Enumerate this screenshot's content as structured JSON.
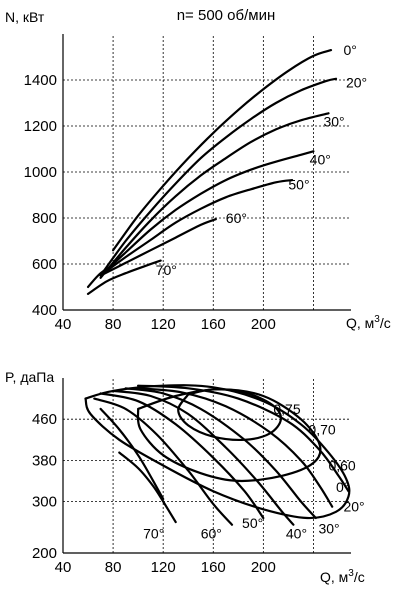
{
  "chart_data": [
    {
      "type": "line",
      "title": "n= 500 об/мин",
      "xlabel": "Q, м",
      "xlabel_sup": "3",
      "xlabel_tail": "/с",
      "ylabel": "N, кВт",
      "xlim": [
        40,
        270
      ],
      "ylim": [
        400,
        1600
      ],
      "xticks": [
        40,
        80,
        120,
        160,
        200
      ],
      "xtick_labels": [
        "40",
        "80",
        "120",
        "160",
        "200"
      ],
      "yticks": [
        400,
        600,
        800,
        1000,
        1200,
        1400
      ],
      "ytick_labels": [
        "400",
        "600",
        "800",
        "1000",
        "1200",
        "1400"
      ],
      "xgrid": [
        80,
        120,
        160,
        200,
        240
      ],
      "ygrid": [
        600,
        800,
        1000,
        1200,
        1400
      ],
      "grid": true,
      "series": [
        {
          "name": "0°",
          "label_at": [
            264,
            1530
          ],
          "x": [
            80,
            100,
            120,
            140,
            160,
            180,
            200,
            220,
            240,
            254
          ],
          "y": [
            660,
            810,
            940,
            1060,
            1170,
            1270,
            1360,
            1440,
            1505,
            1530
          ]
        },
        {
          "name": "20°",
          "label_at": [
            266,
            1390
          ],
          "x": [
            70,
            90,
            110,
            130,
            150,
            170,
            190,
            210,
            230,
            250,
            258
          ],
          "y": [
            550,
            700,
            830,
            950,
            1060,
            1150,
            1230,
            1300,
            1355,
            1395,
            1405
          ]
        },
        {
          "name": "30°",
          "label_at": [
            248,
            1220
          ],
          "x": [
            70,
            90,
            110,
            130,
            150,
            170,
            190,
            210,
            230,
            252
          ],
          "y": [
            540,
            670,
            790,
            895,
            985,
            1060,
            1130,
            1185,
            1225,
            1255
          ]
        },
        {
          "name": "40°",
          "label_at": [
            237,
            1055
          ],
          "x": [
            70,
            90,
            110,
            130,
            150,
            170,
            190,
            210,
            230,
            240
          ],
          "y": [
            550,
            650,
            750,
            835,
            905,
            965,
            1010,
            1045,
            1075,
            1090
          ]
        },
        {
          "name": "50°",
          "label_at": [
            220,
            945
          ],
          "x": [
            70,
            90,
            110,
            130,
            150,
            170,
            190,
            210,
            223
          ],
          "y": [
            550,
            630,
            705,
            780,
            840,
            890,
            925,
            955,
            965
          ]
        },
        {
          "name": "60°",
          "label_at": [
            170,
            800
          ],
          "x": [
            70,
            90,
            110,
            130,
            150,
            162
          ],
          "y": [
            550,
            605,
            660,
            715,
            770,
            795
          ]
        },
        {
          "name": "70°",
          "label_at": [
            114,
            575
          ],
          "x": [
            60,
            75,
            90,
            105,
            118
          ],
          "y": [
            470,
            525,
            560,
            590,
            615
          ]
        },
        {
          "name": "",
          "x": [
            60,
            70,
            82
          ],
          "y": [
            500,
            560,
            600
          ]
        }
      ]
    },
    {
      "type": "line",
      "title": "",
      "xlabel": "Q, м",
      "xlabel_sup": "3",
      "xlabel_tail": "/с",
      "ylabel": "P, даПа",
      "xlim": [
        40,
        270
      ],
      "ylim": [
        200,
        540
      ],
      "xticks": [
        40,
        80,
        120,
        160,
        200
      ],
      "xtick_labels": [
        "40",
        "80",
        "120",
        "160",
        "200"
      ],
      "yticks": [
        200,
        300,
        380,
        460
      ],
      "ytick_labels": [
        "200",
        "300",
        "380",
        "460"
      ],
      "xgrid": [
        80,
        120,
        160,
        200,
        240
      ],
      "ygrid": [
        300,
        380,
        460
      ],
      "grid": true,
      "efficiency_labels": [
        {
          "text": "0,75",
          "at": [
            208,
            480
          ]
        },
        {
          "text": "0,70",
          "at": [
            236,
            440
          ]
        },
        {
          "text": "0,60",
          "at": [
            252,
            370
          ]
        }
      ],
      "efficiency_contours": [
        {
          "name": "0,75",
          "x": [
            140,
            160,
            185,
            207,
            214,
            205,
            185,
            160,
            140,
            132,
            140
          ],
          "y": [
            508,
            518,
            512,
            488,
            460,
            432,
            420,
            426,
            448,
            478,
            508
          ]
        },
        {
          "name": "0,70",
          "x": [
            100,
            130,
            165,
            200,
            230,
            245,
            240,
            215,
            180,
            150,
            120,
            102,
            100
          ],
          "y": [
            480,
            505,
            518,
            505,
            460,
            410,
            375,
            350,
            340,
            355,
            390,
            440,
            480
          ]
        },
        {
          "name": "0,60",
          "x": [
            58,
            80,
            120,
            160,
            200,
            230,
            252,
            266,
            268,
            258,
            235,
            200,
            160,
            120,
            85,
            62,
            58
          ],
          "y": [
            500,
            515,
            525,
            522,
            495,
            450,
            395,
            345,
            310,
            280,
            268,
            285,
            320,
            370,
            420,
            470,
            500
          ]
        }
      ],
      "series": [
        {
          "name": "0°",
          "label_at": [
            258,
            328
          ],
          "x": [
            100,
            140,
            180,
            220,
            245,
            260,
            268
          ],
          "y": [
            525,
            520,
            500,
            455,
            400,
            350,
            320
          ]
        },
        {
          "name": "20°",
          "label_at": [
            264,
            290
          ],
          "x": [
            100,
            135,
            170,
            205,
            230,
            245,
            255
          ],
          "y": [
            520,
            512,
            485,
            435,
            380,
            330,
            290
          ]
        },
        {
          "name": "30°",
          "label_at": [
            244,
            248
          ],
          "x": [
            90,
            120,
            150,
            185,
            210,
            230,
            242
          ],
          "y": [
            520,
            510,
            480,
            420,
            360,
            300,
            268
          ]
        },
        {
          "name": "40°",
          "label_at": [
            218,
            238
          ],
          "x": [
            80,
            110,
            140,
            170,
            195,
            215,
            224
          ],
          "y": [
            515,
            505,
            470,
            405,
            340,
            280,
            255
          ]
        },
        {
          "name": "50°",
          "label_at": [
            183,
            258
          ],
          "x": [
            70,
            100,
            130,
            160,
            185,
            200
          ],
          "y": [
            510,
            495,
            450,
            385,
            320,
            268
          ]
        },
        {
          "name": "60°",
          "label_at": [
            150,
            238
          ],
          "x": [
            65,
            90,
            115,
            140,
            160,
            175
          ],
          "y": [
            500,
            480,
            430,
            360,
            295,
            255
          ]
        },
        {
          "name": "70°",
          "label_at": [
            104,
            238
          ],
          "x": [
            70,
            85,
            100,
            112,
            120
          ],
          "y": [
            480,
            440,
            390,
            340,
            305
          ]
        },
        {
          "name": "",
          "x": [
            85,
            100,
            112,
            120,
            130
          ],
          "y": [
            395,
            365,
            330,
            300,
            260
          ]
        }
      ]
    }
  ]
}
